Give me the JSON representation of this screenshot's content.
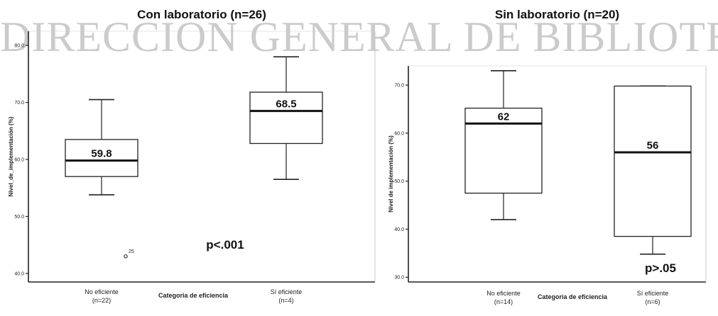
{
  "watermark": "DIRECCION GENERAL DE BIBLIOTECAS",
  "chart_data": [
    {
      "type": "box",
      "title": "Con laboratorio (n=26)",
      "xlabel": "Categoria de eficiencia",
      "ylabel": "Nivel_de_implementación (%)",
      "ylim": [
        38.5,
        82.5
      ],
      "yticks": [
        40,
        50,
        60,
        70,
        80
      ],
      "ytick_labels": [
        "40.0",
        "50.0",
        "60.0",
        "70.0",
        "80.0"
      ],
      "categories": [
        {
          "name": "No eficiente",
          "n_label": "(n=22)"
        },
        {
          "name": "Sí eficiente",
          "n_label": "(n=4)"
        }
      ],
      "boxes": [
        {
          "min": 53.8,
          "q1": 57.0,
          "median": 59.8,
          "q3": 63.5,
          "max": 70.5,
          "median_label": "59.8",
          "outliers": [
            {
              "value": 43.0,
              "label": "25"
            }
          ]
        },
        {
          "min": 56.5,
          "q1": 62.8,
          "median": 68.5,
          "q3": 71.8,
          "max": 78.0,
          "median_label": "68.5",
          "outliers": []
        }
      ],
      "annotation": "p<.001"
    },
    {
      "type": "box",
      "title": "Sin laboratorio (n=20)",
      "xlabel": "Categoria de eficiencia",
      "ylabel": "Nivel de implementación (%)",
      "ylim": [
        29.0,
        74.0
      ],
      "yticks": [
        30,
        40,
        50,
        60,
        70
      ],
      "ytick_labels": [
        "30.0",
        "40.0",
        "50.0",
        "60.0",
        "70.0"
      ],
      "categories": [
        {
          "name": "No eficiente",
          "n_label": "(n=14)"
        },
        {
          "name": "Sí eficiente",
          "n_label": "(n=6)"
        }
      ],
      "boxes": [
        {
          "min": 42.0,
          "q1": 47.5,
          "median": 62.0,
          "q3": 65.2,
          "max": 73.0,
          "median_label": "62",
          "outliers": []
        },
        {
          "min": 34.8,
          "q1": 38.5,
          "median": 56.0,
          "q3": 69.8,
          "max": 69.8,
          "median_label": "56",
          "outliers": []
        }
      ],
      "annotation": "p>.05"
    }
  ]
}
